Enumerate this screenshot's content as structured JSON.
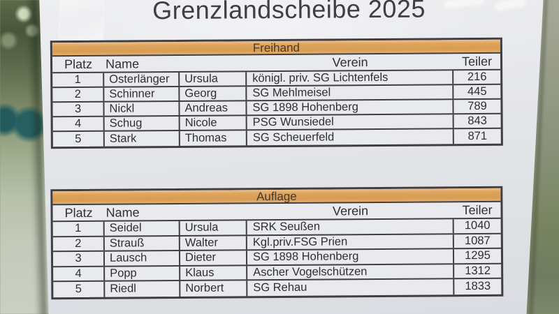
{
  "title": "Grenzlandscheibe 2025",
  "tables": [
    {
      "section": "Freihand",
      "headers": {
        "platz": "Platz",
        "name": "Name",
        "verein": "Verein",
        "teiler": "Teiler"
      },
      "rows": [
        {
          "platz": "1",
          "nachname": "Osterlänger",
          "vorname": "Ursula",
          "verein": "königl. priv. SG Lichtenfels",
          "teiler": "216"
        },
        {
          "platz": "2",
          "nachname": "Schinner",
          "vorname": "Georg",
          "verein": "SG Mehlmeisel",
          "teiler": "445"
        },
        {
          "platz": "3",
          "nachname": "Nickl",
          "vorname": "Andreas",
          "verein": "SG 1898 Hohenberg",
          "teiler": "789"
        },
        {
          "platz": "4",
          "nachname": "Schug",
          "vorname": "Nicole",
          "verein": "PSG Wunsiedel",
          "teiler": "843"
        },
        {
          "platz": "5",
          "nachname": "Stark",
          "vorname": "Thomas",
          "verein": "SG Scheuerfeld",
          "teiler": "871"
        }
      ]
    },
    {
      "section": "Auflage",
      "headers": {
        "platz": "Platz",
        "name": "Name",
        "verein": "Verein",
        "teiler": "Teiler"
      },
      "rows": [
        {
          "platz": "1",
          "nachname": "Seidel",
          "vorname": "Ursula",
          "verein": "SRK Seußen",
          "teiler": "1040"
        },
        {
          "platz": "2",
          "nachname": "Strauß",
          "vorname": "Walter",
          "verein": "Kgl.priv.FSG Prien",
          "teiler": "1087"
        },
        {
          "platz": "3",
          "nachname": "Lausch",
          "vorname": "Dieter",
          "verein": "SG 1898 Hohenberg",
          "teiler": "1295"
        },
        {
          "platz": "4",
          "nachname": "Popp",
          "vorname": "Klaus",
          "verein": "Ascher Vogelschützen",
          "teiler": "1312"
        },
        {
          "platz": "5",
          "nachname": "Riedl",
          "vorname": "Norbert",
          "verein": "SG Rehau",
          "teiler": "1833"
        }
      ]
    }
  ],
  "colors": {
    "band_orange": "#dea45c",
    "paper": "#e7e8ea",
    "table_border": "#3e3e44",
    "text": "#2e2f35",
    "background_green": "#8a937c",
    "teal_blur_circles": "#235b5f"
  }
}
